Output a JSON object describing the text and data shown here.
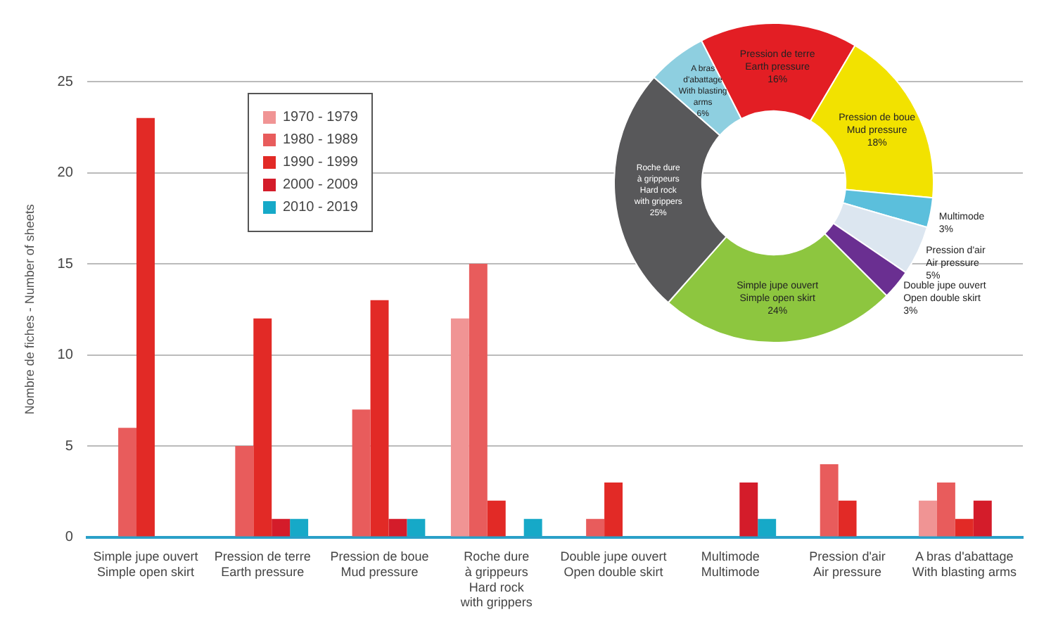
{
  "chart_data": [
    {
      "type": "bar",
      "ylabel": "Nombre de fiches - Number of sheets",
      "categories": [
        "Simple jupe ouvert\nSimple open skirt",
        "Pression de terre\nEarth pressure",
        "Pression de boue\nMud pressure",
        "Roche dure\nà grippeurs\nHard rock\nwith grippers",
        "Double jupe ouvert\nOpen double skirt",
        "Multimode\nMultimode",
        "Pression d'air\nAir pressure",
        "A bras d'abattage\nWith blasting arms"
      ],
      "series": [
        {
          "name": "1970 - 1979",
          "color": "#f09494",
          "values": [
            null,
            null,
            null,
            12,
            null,
            null,
            null,
            2
          ]
        },
        {
          "name": "1980 - 1989",
          "color": "#e85c5c",
          "values": [
            6,
            5,
            7,
            15,
            1,
            null,
            4,
            3
          ]
        },
        {
          "name": "1990 - 1999",
          "color": "#e22a26",
          "values": [
            23,
            12,
            13,
            2,
            3,
            null,
            2,
            1
          ]
        },
        {
          "name": "2000 - 2009",
          "color": "#d41c2a",
          "values": [
            null,
            1,
            1,
            null,
            null,
            3,
            null,
            2
          ]
        },
        {
          "name": "2010 - 2019",
          "color": "#16a9c8",
          "values": [
            null,
            1,
            1,
            1,
            null,
            1,
            null,
            null
          ]
        }
      ],
      "ylim": [
        0,
        25
      ],
      "yticks": [
        0,
        5,
        10,
        15,
        20,
        25
      ],
      "grid": "y",
      "legend": "top left"
    },
    {
      "type": "donut",
      "categories": [
        "Pression de terre\nEarth pressure",
        "Pression de boue\nMud pressure",
        "Multimode",
        "Pression d'air\nAir pressure",
        "Double jupe ouvert\nOpen double skirt",
        "Simple jupe ouvert\nSimple open skirt",
        "Roche dure\nà grippeurs\nHard rock\nwith grippers",
        "A bras\nd'abattage\nWith blasting\narms"
      ],
      "values": [
        16,
        18,
        3,
        5,
        3,
        24,
        25,
        6
      ],
      "colors": [
        "#e31e24",
        "#f2e200",
        "#5bbfdc",
        "#dce6f0",
        "#6a2f91",
        "#8dc63f",
        "#58585a",
        "#8ecfe0"
      ],
      "value_labels": [
        "16%",
        "18%",
        "3%",
        "5%",
        "3%",
        "24%",
        "25%",
        "6%"
      ]
    }
  ]
}
